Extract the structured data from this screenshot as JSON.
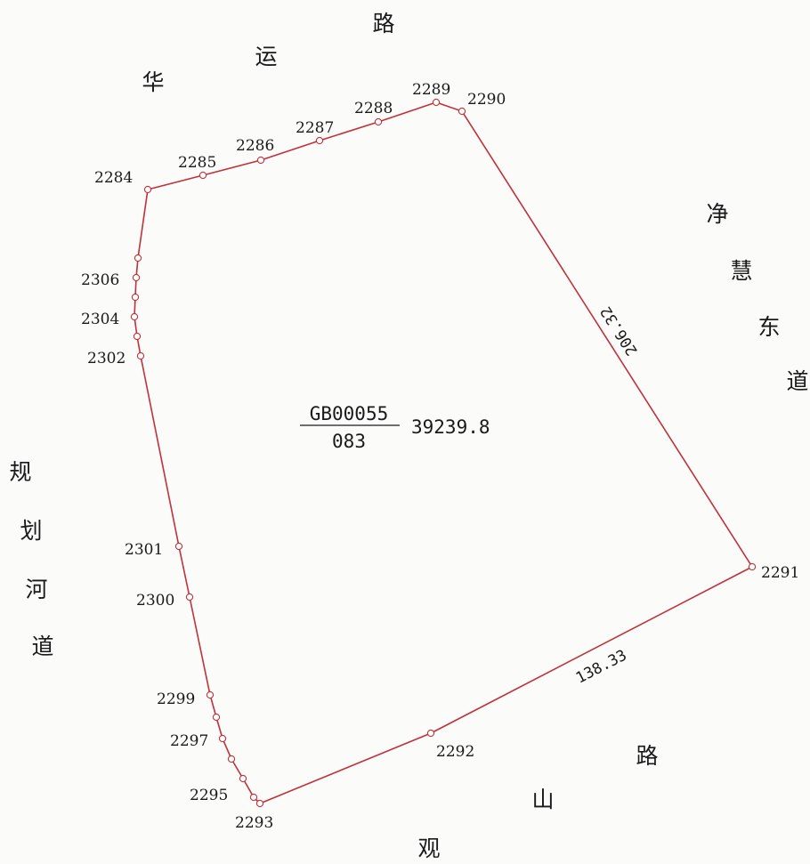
{
  "colors": {
    "boundary": "#c0313a",
    "text": "#1a1a1a",
    "background": "#fbfbfa"
  },
  "roads": {
    "north": [
      "华",
      "运",
      "路"
    ],
    "east": [
      "净",
      "慧",
      "东",
      "道"
    ],
    "west": [
      "规",
      "划",
      "河",
      "道"
    ],
    "south": [
      "观",
      "山",
      "路"
    ]
  },
  "parcel": {
    "code": "GB00055",
    "number": "083",
    "area": "39239.8"
  },
  "dimensions": {
    "east_edge": "206.32",
    "south_edge": "138.33"
  },
  "points": [
    "2284",
    "2285",
    "2286",
    "2287",
    "2288",
    "2289",
    "2290",
    "2291",
    "2292",
    "2293",
    "2295",
    "2297",
    "2299",
    "2300",
    "2301",
    "2302",
    "2304",
    "2306"
  ]
}
